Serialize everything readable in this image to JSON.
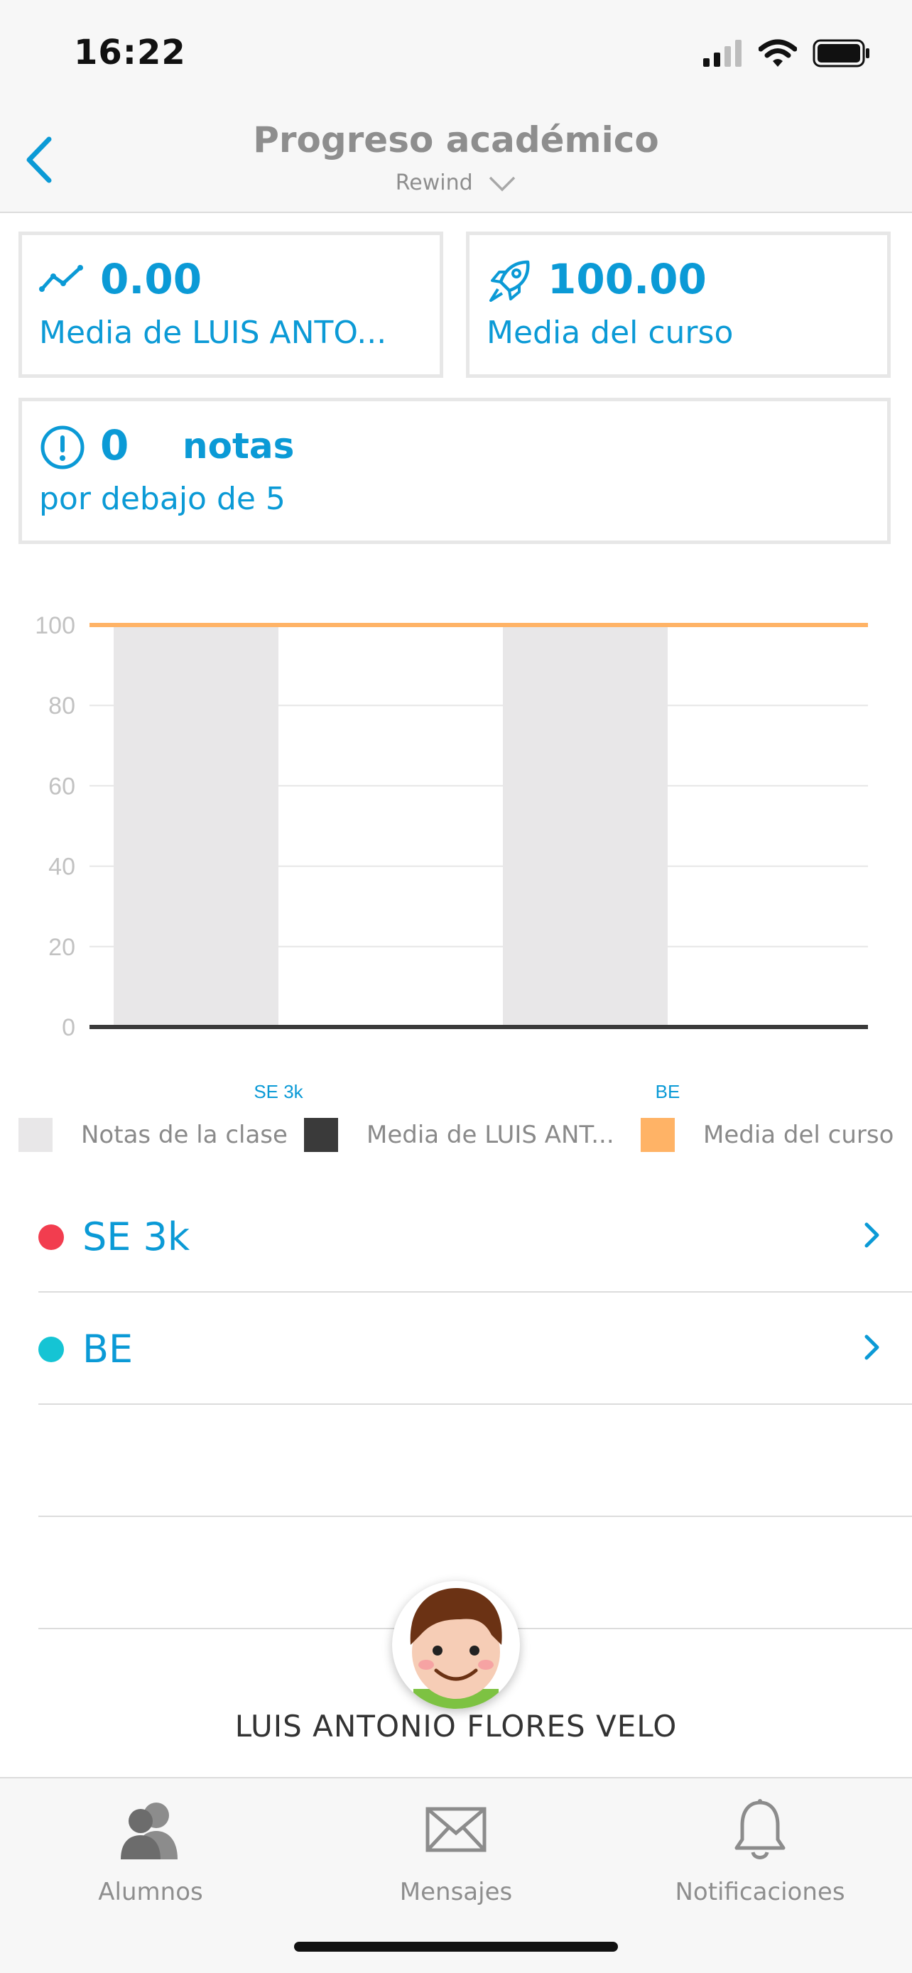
{
  "status_bar": {
    "time": "16:22"
  },
  "header": {
    "title": "Progreso académico",
    "subtitle": "Rewind"
  },
  "cards": {
    "student_avg": {
      "value": "0.00",
      "label": "Media de LUIS ANTO..."
    },
    "course_avg": {
      "value": "100.00",
      "label": "Media del curso"
    },
    "low_grades": {
      "value": "0",
      "unit": "notas",
      "label": "por debajo de 5"
    }
  },
  "chart_data": {
    "type": "bar",
    "categories": [
      "SE 3k",
      "BE"
    ],
    "series": [
      {
        "name": "Notas de la clase",
        "values": [
          100,
          100
        ],
        "color": "#e8e7e8"
      },
      {
        "name": "Media de LUIS ANT...",
        "values": [
          0,
          0
        ],
        "color": "#3a3a3a"
      },
      {
        "name": "Media del curso",
        "values": [
          100,
          100
        ],
        "color": "#ffb366",
        "kind": "line"
      }
    ],
    "ylim": [
      0,
      100
    ],
    "yticks": [
      0,
      20,
      40,
      60,
      80,
      100
    ],
    "grid": true,
    "legend_position": "bottom"
  },
  "subjects": [
    {
      "name": "SE 3k",
      "color": "#f23d4f"
    },
    {
      "name": "BE",
      "color": "#15c4d4"
    }
  ],
  "student": {
    "name": "LUIS ANTONIO FLORES VELO"
  },
  "tabs": [
    {
      "label": "Alumnos",
      "icon": "students-icon"
    },
    {
      "label": "Mensajes",
      "icon": "envelope-icon"
    },
    {
      "label": "Notificaciones",
      "icon": "bell-icon"
    }
  ],
  "colors": {
    "accent": "#0b9ad6",
    "muted": "#8e8e8e"
  }
}
